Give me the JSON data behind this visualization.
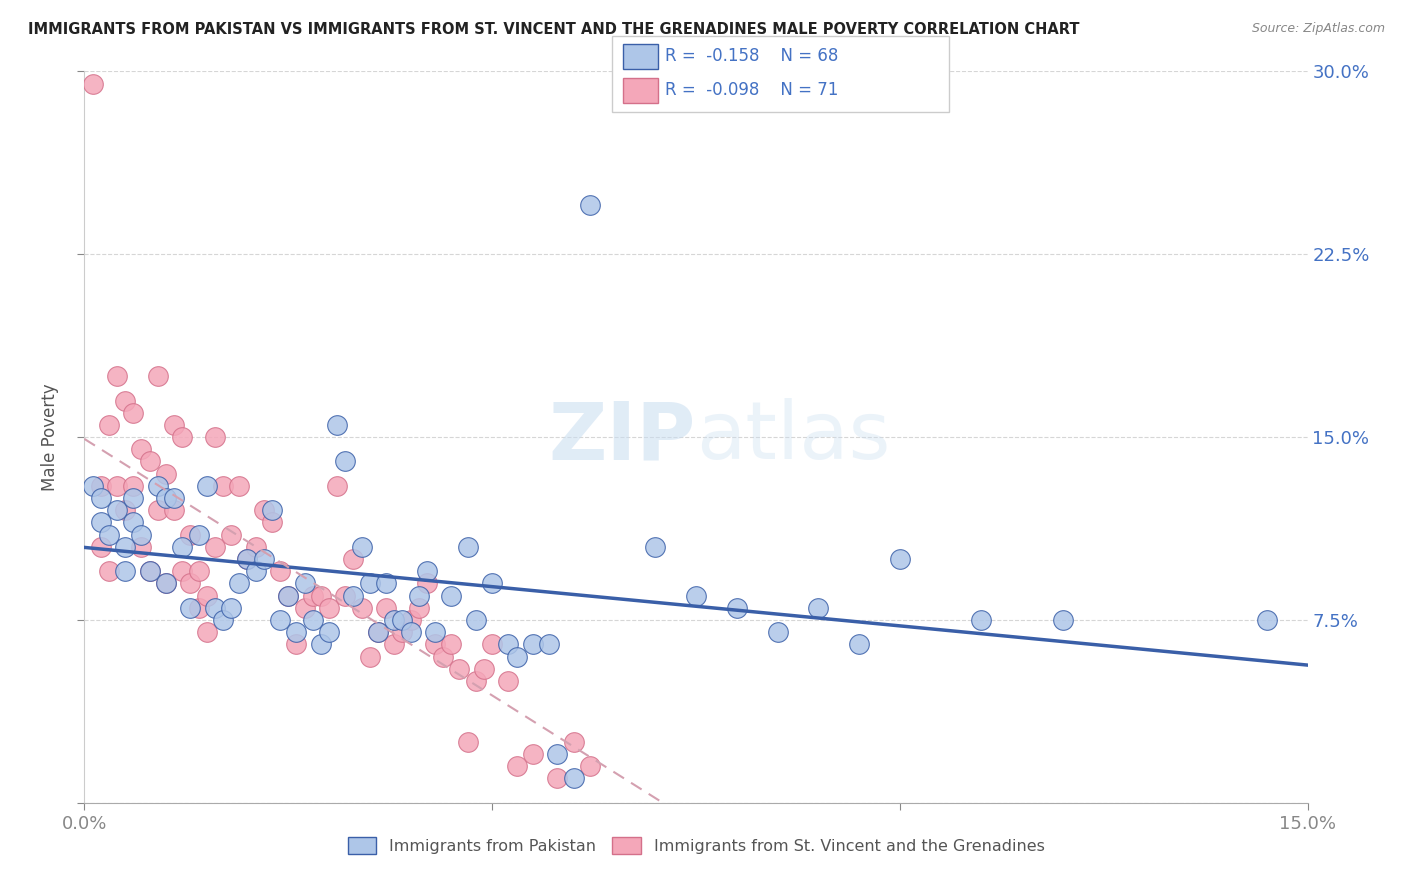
{
  "title": "IMMIGRANTS FROM PAKISTAN VS IMMIGRANTS FROM ST. VINCENT AND THE GRENADINES MALE POVERTY CORRELATION CHART",
  "source": "Source: ZipAtlas.com",
  "ylabel": "Male Poverty",
  "xlim": [
    0.0,
    0.15
  ],
  "ylim": [
    0.0,
    0.3
  ],
  "legend_label1": "Immigrants from Pakistan",
  "legend_label2": "Immigrants from St. Vincent and the Grenadines",
  "R1": -0.158,
  "N1": 68,
  "R2": -0.098,
  "N2": 71,
  "color_pakistan": "#aec6e8",
  "color_vincent": "#f4a7b9",
  "color_line_pakistan": "#3a5fa8",
  "color_line_vincent": "#d9a0b0",
  "pakistan_x": [
    0.001,
    0.002,
    0.002,
    0.003,
    0.004,
    0.005,
    0.005,
    0.006,
    0.006,
    0.007,
    0.008,
    0.009,
    0.01,
    0.01,
    0.011,
    0.012,
    0.013,
    0.014,
    0.015,
    0.016,
    0.017,
    0.018,
    0.019,
    0.02,
    0.021,
    0.022,
    0.023,
    0.024,
    0.025,
    0.026,
    0.027,
    0.028,
    0.029,
    0.03,
    0.031,
    0.032,
    0.033,
    0.034,
    0.035,
    0.036,
    0.037,
    0.038,
    0.039,
    0.04,
    0.041,
    0.042,
    0.043,
    0.045,
    0.047,
    0.048,
    0.05,
    0.052,
    0.053,
    0.055,
    0.057,
    0.058,
    0.06,
    0.062,
    0.07,
    0.075,
    0.08,
    0.085,
    0.09,
    0.095,
    0.1,
    0.11,
    0.12,
    0.145
  ],
  "pakistan_y": [
    0.13,
    0.125,
    0.115,
    0.11,
    0.12,
    0.105,
    0.095,
    0.125,
    0.115,
    0.11,
    0.095,
    0.13,
    0.125,
    0.09,
    0.125,
    0.105,
    0.08,
    0.11,
    0.13,
    0.08,
    0.075,
    0.08,
    0.09,
    0.1,
    0.095,
    0.1,
    0.12,
    0.075,
    0.085,
    0.07,
    0.09,
    0.075,
    0.065,
    0.07,
    0.155,
    0.14,
    0.085,
    0.105,
    0.09,
    0.07,
    0.09,
    0.075,
    0.075,
    0.07,
    0.085,
    0.095,
    0.07,
    0.085,
    0.105,
    0.075,
    0.09,
    0.065,
    0.06,
    0.065,
    0.065,
    0.02,
    0.01,
    0.245,
    0.105,
    0.085,
    0.08,
    0.07,
    0.08,
    0.065,
    0.1,
    0.075,
    0.075,
    0.075
  ],
  "vincent_x": [
    0.001,
    0.002,
    0.002,
    0.003,
    0.003,
    0.004,
    0.004,
    0.005,
    0.005,
    0.006,
    0.006,
    0.007,
    0.007,
    0.008,
    0.008,
    0.009,
    0.009,
    0.01,
    0.01,
    0.011,
    0.011,
    0.012,
    0.012,
    0.013,
    0.013,
    0.014,
    0.014,
    0.015,
    0.015,
    0.016,
    0.016,
    0.017,
    0.018,
    0.019,
    0.02,
    0.021,
    0.022,
    0.023,
    0.024,
    0.025,
    0.026,
    0.027,
    0.028,
    0.029,
    0.03,
    0.031,
    0.032,
    0.033,
    0.034,
    0.035,
    0.036,
    0.037,
    0.038,
    0.039,
    0.04,
    0.041,
    0.042,
    0.043,
    0.044,
    0.045,
    0.046,
    0.047,
    0.048,
    0.049,
    0.05,
    0.052,
    0.053,
    0.055,
    0.058,
    0.06,
    0.062
  ],
  "vincent_y": [
    0.295,
    0.13,
    0.105,
    0.155,
    0.095,
    0.175,
    0.13,
    0.165,
    0.12,
    0.16,
    0.13,
    0.145,
    0.105,
    0.14,
    0.095,
    0.175,
    0.12,
    0.135,
    0.09,
    0.155,
    0.12,
    0.15,
    0.095,
    0.11,
    0.09,
    0.095,
    0.08,
    0.085,
    0.07,
    0.15,
    0.105,
    0.13,
    0.11,
    0.13,
    0.1,
    0.105,
    0.12,
    0.115,
    0.095,
    0.085,
    0.065,
    0.08,
    0.085,
    0.085,
    0.08,
    0.13,
    0.085,
    0.1,
    0.08,
    0.06,
    0.07,
    0.08,
    0.065,
    0.07,
    0.075,
    0.08,
    0.09,
    0.065,
    0.06,
    0.065,
    0.055,
    0.025,
    0.05,
    0.055,
    0.065,
    0.05,
    0.015,
    0.02,
    0.01,
    0.025,
    0.015
  ]
}
